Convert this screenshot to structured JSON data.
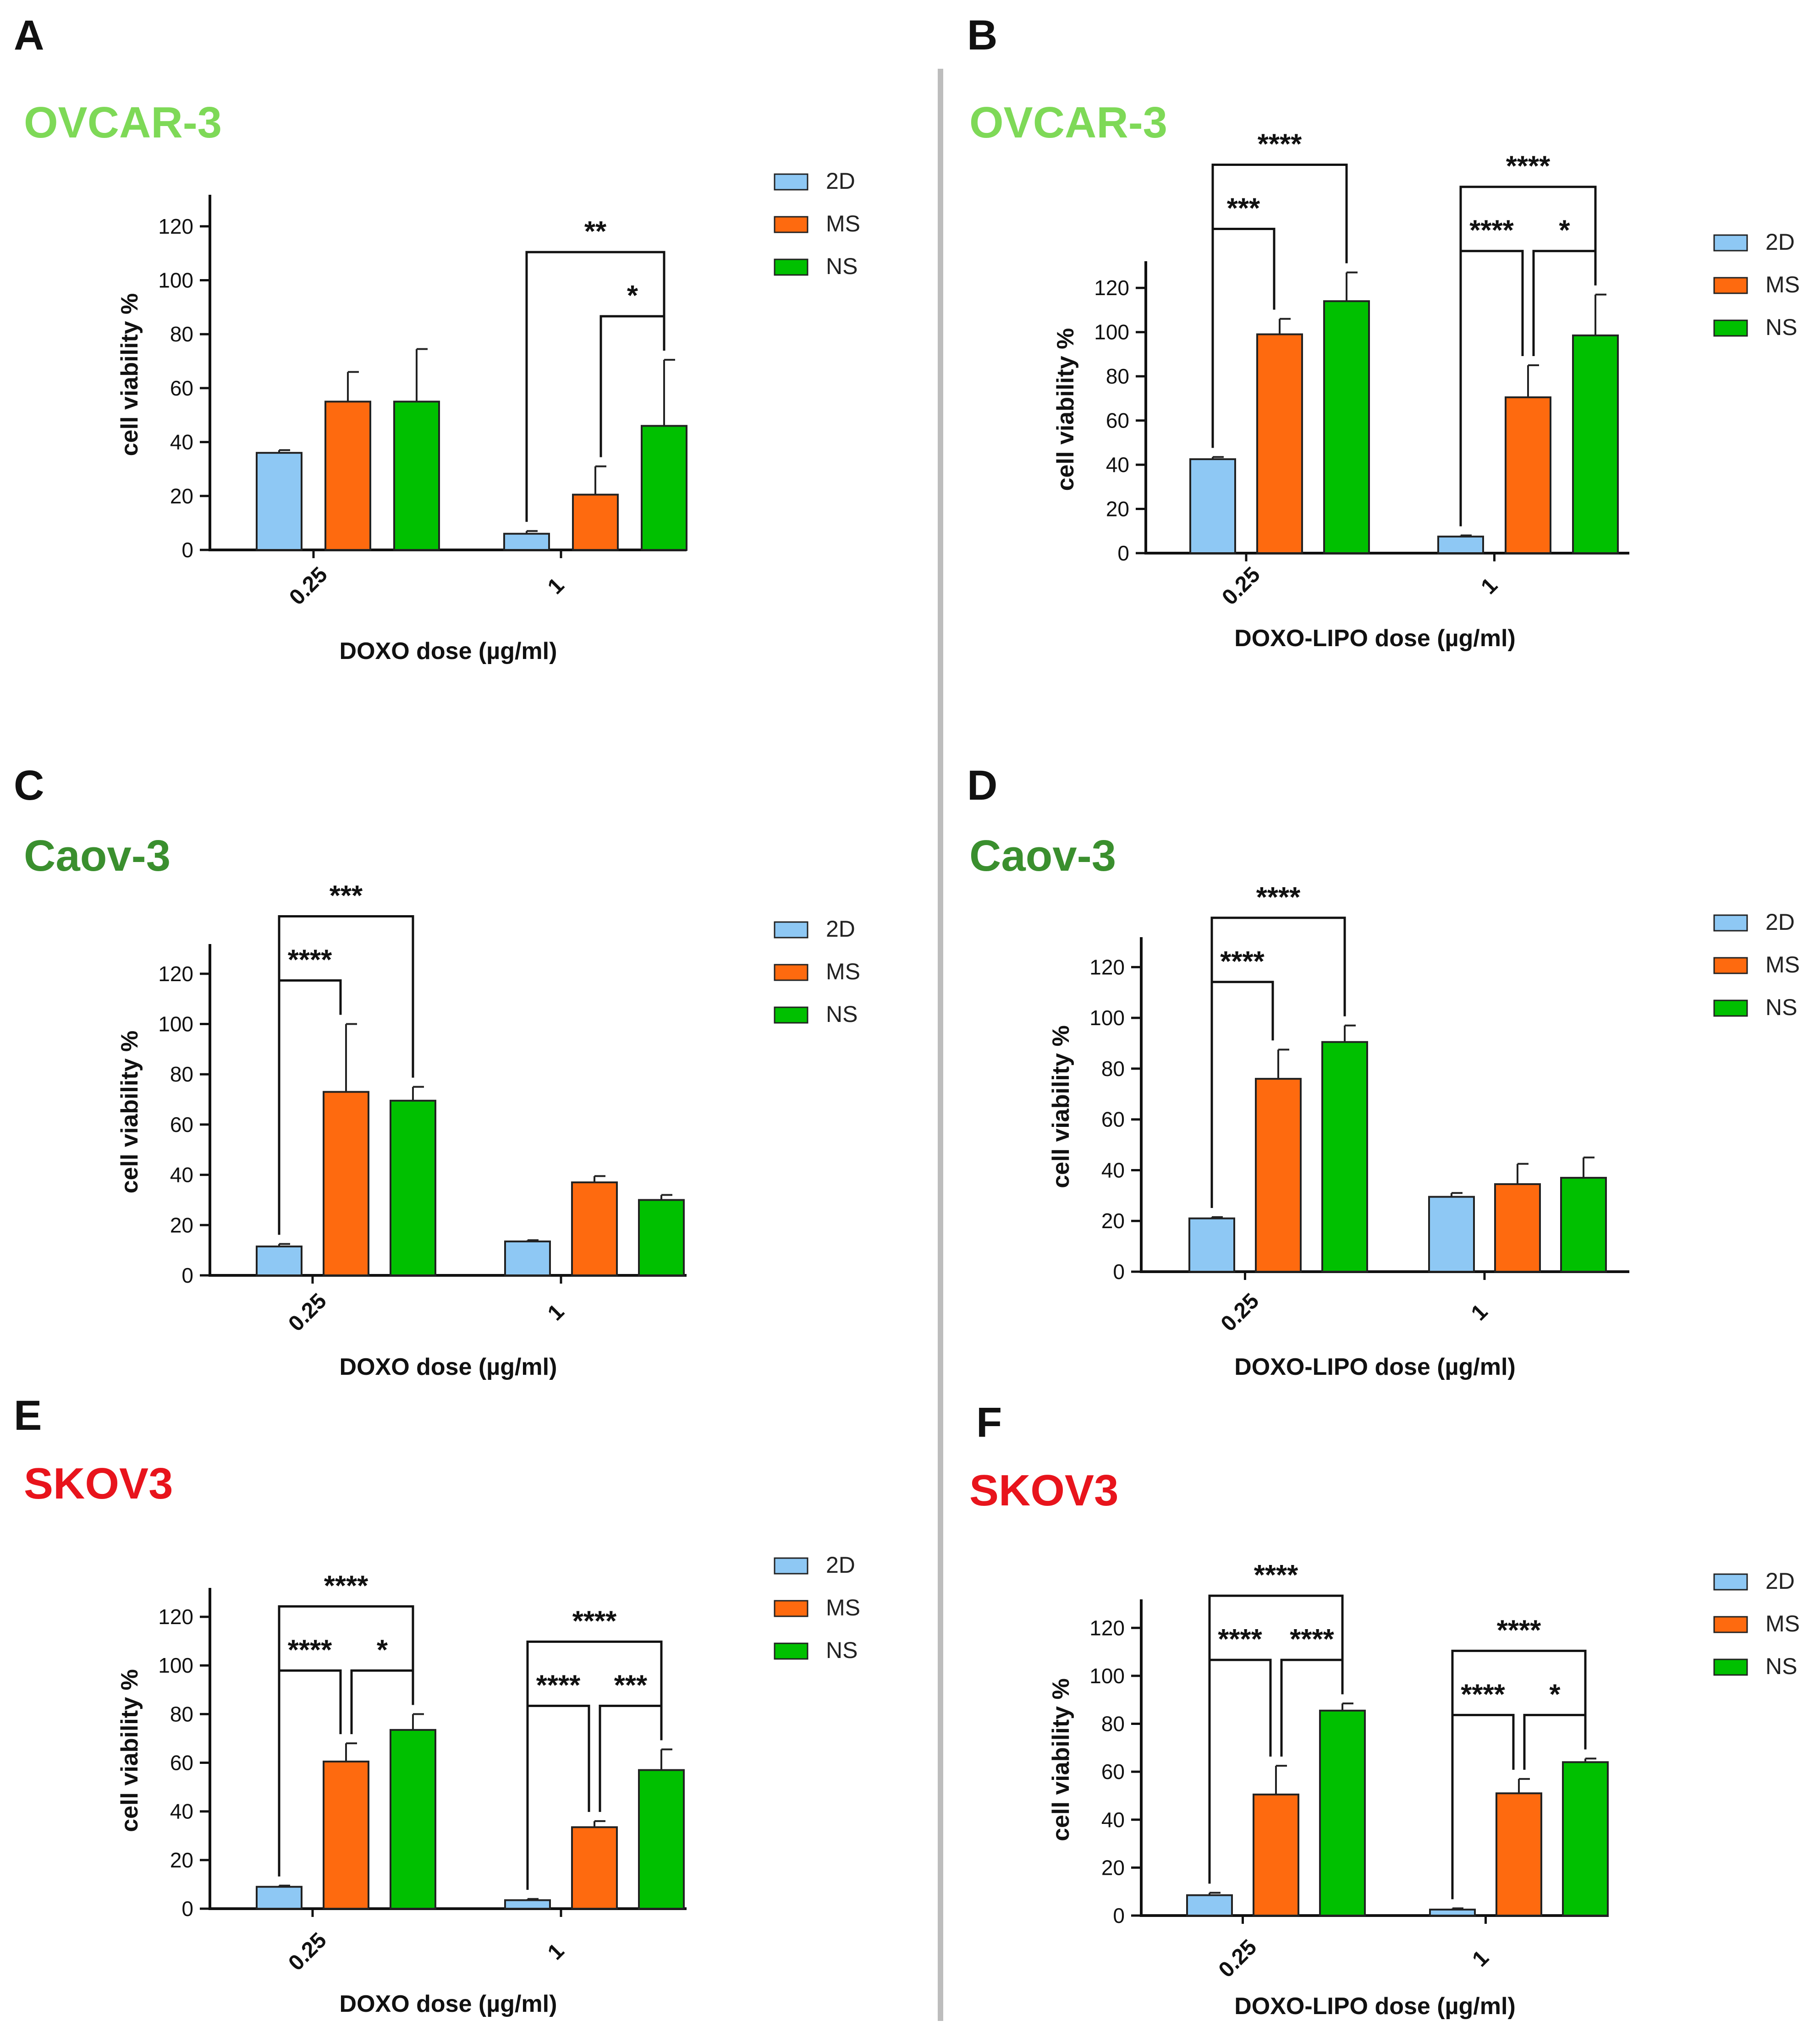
{
  "figure": {
    "colors": {
      "2D": "#8ec8f4",
      "MS": "#fe6a0f",
      "NS": "#00c000",
      "OVCAR-3": "#7ed957",
      "Caov-3": "#3a8f2e",
      "SKOV3": "#e8141c",
      "divider": "#bdbdbd"
    }
  },
  "chart_data": [
    {
      "panel": "A",
      "cell_line": "OVCAR-3",
      "type": "bar",
      "xlabel": "DOXO dose (µg/ml)",
      "ylabel": "cell viability %",
      "ylim": [
        0,
        130
      ],
      "yticks": [
        "0",
        "20",
        "40",
        "60",
        "80",
        "100",
        "120"
      ],
      "categories": [
        "0.25",
        "1"
      ],
      "legend": [
        "2D",
        "MS",
        "NS"
      ],
      "series": [
        {
          "name": "2D",
          "values": [
            36,
            6
          ],
          "errors": [
            1,
            1
          ]
        },
        {
          "name": "MS",
          "values": [
            55,
            20.5
          ],
          "errors": [
            11,
            10.5
          ]
        },
        {
          "name": "NS",
          "values": [
            55,
            46
          ],
          "errors": [
            19.5,
            24.5
          ]
        }
      ],
      "significance": [
        {
          "label": "**",
          "group": 1,
          "from": "2D",
          "to": "NS"
        },
        {
          "label": "*",
          "group": 1,
          "from": "MS",
          "to": "NS"
        }
      ]
    },
    {
      "panel": "B",
      "cell_line": "OVCAR-3",
      "type": "bar",
      "xlabel": "DOXO-LIPO dose (µg/ml)",
      "ylabel": "cell viability %",
      "ylim": [
        0,
        130
      ],
      "yticks": [
        "0",
        "20",
        "40",
        "60",
        "80",
        "100",
        "120"
      ],
      "categories": [
        "0.25",
        "1"
      ],
      "legend": [
        "2D",
        "MS",
        "NS"
      ],
      "series": [
        {
          "name": "2D",
          "values": [
            42.5,
            7.5
          ],
          "errors": [
            1,
            0.5
          ]
        },
        {
          "name": "MS",
          "values": [
            99,
            70.5
          ],
          "errors": [
            7,
            14.5
          ]
        },
        {
          "name": "NS",
          "values": [
            114,
            98.5
          ],
          "errors": [
            13,
            18.5
          ]
        }
      ],
      "significance": [
        {
          "label": "****",
          "group": 0,
          "from": "2D",
          "to": "NS"
        },
        {
          "label": "***",
          "group": 0,
          "from": "2D",
          "to": "MS"
        },
        {
          "label": "****",
          "group": 1,
          "from": "2D",
          "to": "NS"
        },
        {
          "label": "****",
          "group": 1,
          "from": "2D",
          "to": "MS"
        },
        {
          "label": "*",
          "group": 1,
          "from": "MS",
          "to": "NS"
        }
      ]
    },
    {
      "panel": "C",
      "cell_line": "Caov-3",
      "type": "bar",
      "xlabel": "DOXO dose (µg/ml)",
      "ylabel": "cell viability %",
      "ylim": [
        0,
        130
      ],
      "yticks": [
        "0",
        "20",
        "40",
        "60",
        "80",
        "100",
        "120"
      ],
      "categories": [
        "0.25",
        "1"
      ],
      "legend": [
        "2D",
        "MS",
        "NS"
      ],
      "series": [
        {
          "name": "2D",
          "values": [
            11.5,
            13.5
          ],
          "errors": [
            1,
            0.5
          ]
        },
        {
          "name": "MS",
          "values": [
            73,
            37
          ],
          "errors": [
            27,
            2.5
          ]
        },
        {
          "name": "NS",
          "values": [
            69.5,
            30
          ],
          "errors": [
            5.5,
            2
          ]
        }
      ],
      "significance": [
        {
          "label": "***",
          "group": 0,
          "from": "2D",
          "to": "NS"
        },
        {
          "label": "****",
          "group": 0,
          "from": "2D",
          "to": "MS"
        }
      ]
    },
    {
      "panel": "D",
      "cell_line": "Caov-3",
      "type": "bar",
      "xlabel": "DOXO-LIPO dose (µg/ml)",
      "ylabel": "cell viability %",
      "ylim": [
        0,
        130
      ],
      "yticks": [
        "0",
        "20",
        "40",
        "60",
        "80",
        "100",
        "120"
      ],
      "categories": [
        "0.25",
        "1"
      ],
      "legend": [
        "2D",
        "MS",
        "NS"
      ],
      "series": [
        {
          "name": "2D",
          "values": [
            21,
            29.5
          ],
          "errors": [
            0.5,
            1.5
          ]
        },
        {
          "name": "MS",
          "values": [
            76,
            34.5
          ],
          "errors": [
            11.5,
            8
          ]
        },
        {
          "name": "NS",
          "values": [
            90.5,
            37
          ],
          "errors": [
            6.5,
            8
          ]
        }
      ],
      "significance": [
        {
          "label": "****",
          "group": 0,
          "from": "2D",
          "to": "NS"
        },
        {
          "label": "****",
          "group": 0,
          "from": "2D",
          "to": "MS"
        }
      ]
    },
    {
      "panel": "E",
      "cell_line": "SKOV3",
      "type": "bar",
      "xlabel": "DOXO dose (µg/ml)",
      "ylabel": "cell viability %",
      "ylim": [
        0,
        130
      ],
      "yticks": [
        "0",
        "20",
        "40",
        "60",
        "80",
        "100",
        "120"
      ],
      "categories": [
        "0.25",
        "1"
      ],
      "legend": [
        "2D",
        "MS",
        "NS"
      ],
      "series": [
        {
          "name": "2D",
          "values": [
            9,
            3.5
          ],
          "errors": [
            0.5,
            0.5
          ]
        },
        {
          "name": "MS",
          "values": [
            60.5,
            33.5
          ],
          "errors": [
            7.5,
            2.5
          ]
        },
        {
          "name": "NS",
          "values": [
            73.5,
            57
          ],
          "errors": [
            6.5,
            8.5
          ]
        }
      ],
      "significance": [
        {
          "label": "****",
          "group": 0,
          "from": "2D",
          "to": "NS"
        },
        {
          "label": "****",
          "group": 0,
          "from": "2D",
          "to": "MS"
        },
        {
          "label": "*",
          "group": 0,
          "from": "MS",
          "to": "NS"
        },
        {
          "label": "****",
          "group": 1,
          "from": "2D",
          "to": "NS"
        },
        {
          "label": "***",
          "group": 1,
          "from": "MS",
          "to": "NS"
        },
        {
          "label": "****",
          "group": 1,
          "from": "2D",
          "to": "MS"
        }
      ]
    },
    {
      "panel": "F",
      "cell_line": "SKOV3",
      "type": "bar",
      "xlabel": "DOXO-LIPO dose (µg/ml)",
      "ylabel": "cell viability %",
      "ylim": [
        0,
        130
      ],
      "yticks": [
        "0",
        "20",
        "40",
        "60",
        "80",
        "100",
        "120"
      ],
      "categories": [
        "0.25",
        "1"
      ],
      "legend": [
        "2D",
        "MS",
        "NS"
      ],
      "series": [
        {
          "name": "2D",
          "values": [
            8.5,
            2.5
          ],
          "errors": [
            1,
            0.5
          ]
        },
        {
          "name": "MS",
          "values": [
            50.5,
            51
          ],
          "errors": [
            12,
            6
          ]
        },
        {
          "name": "NS",
          "values": [
            85.5,
            64
          ],
          "errors": [
            3,
            1.5
          ]
        }
      ],
      "significance": [
        {
          "label": "****",
          "group": 0,
          "from": "2D",
          "to": "NS"
        },
        {
          "label": "****",
          "group": 0,
          "from": "MS",
          "to": "NS"
        },
        {
          "label": "****",
          "group": 0,
          "from": "2D",
          "to": "MS"
        },
        {
          "label": "****",
          "group": 1,
          "from": "2D",
          "to": "NS"
        },
        {
          "label": "****",
          "group": 1,
          "from": "2D",
          "to": "MS"
        },
        {
          "label": "*",
          "group": 1,
          "from": "MS",
          "to": "NS"
        }
      ]
    }
  ]
}
